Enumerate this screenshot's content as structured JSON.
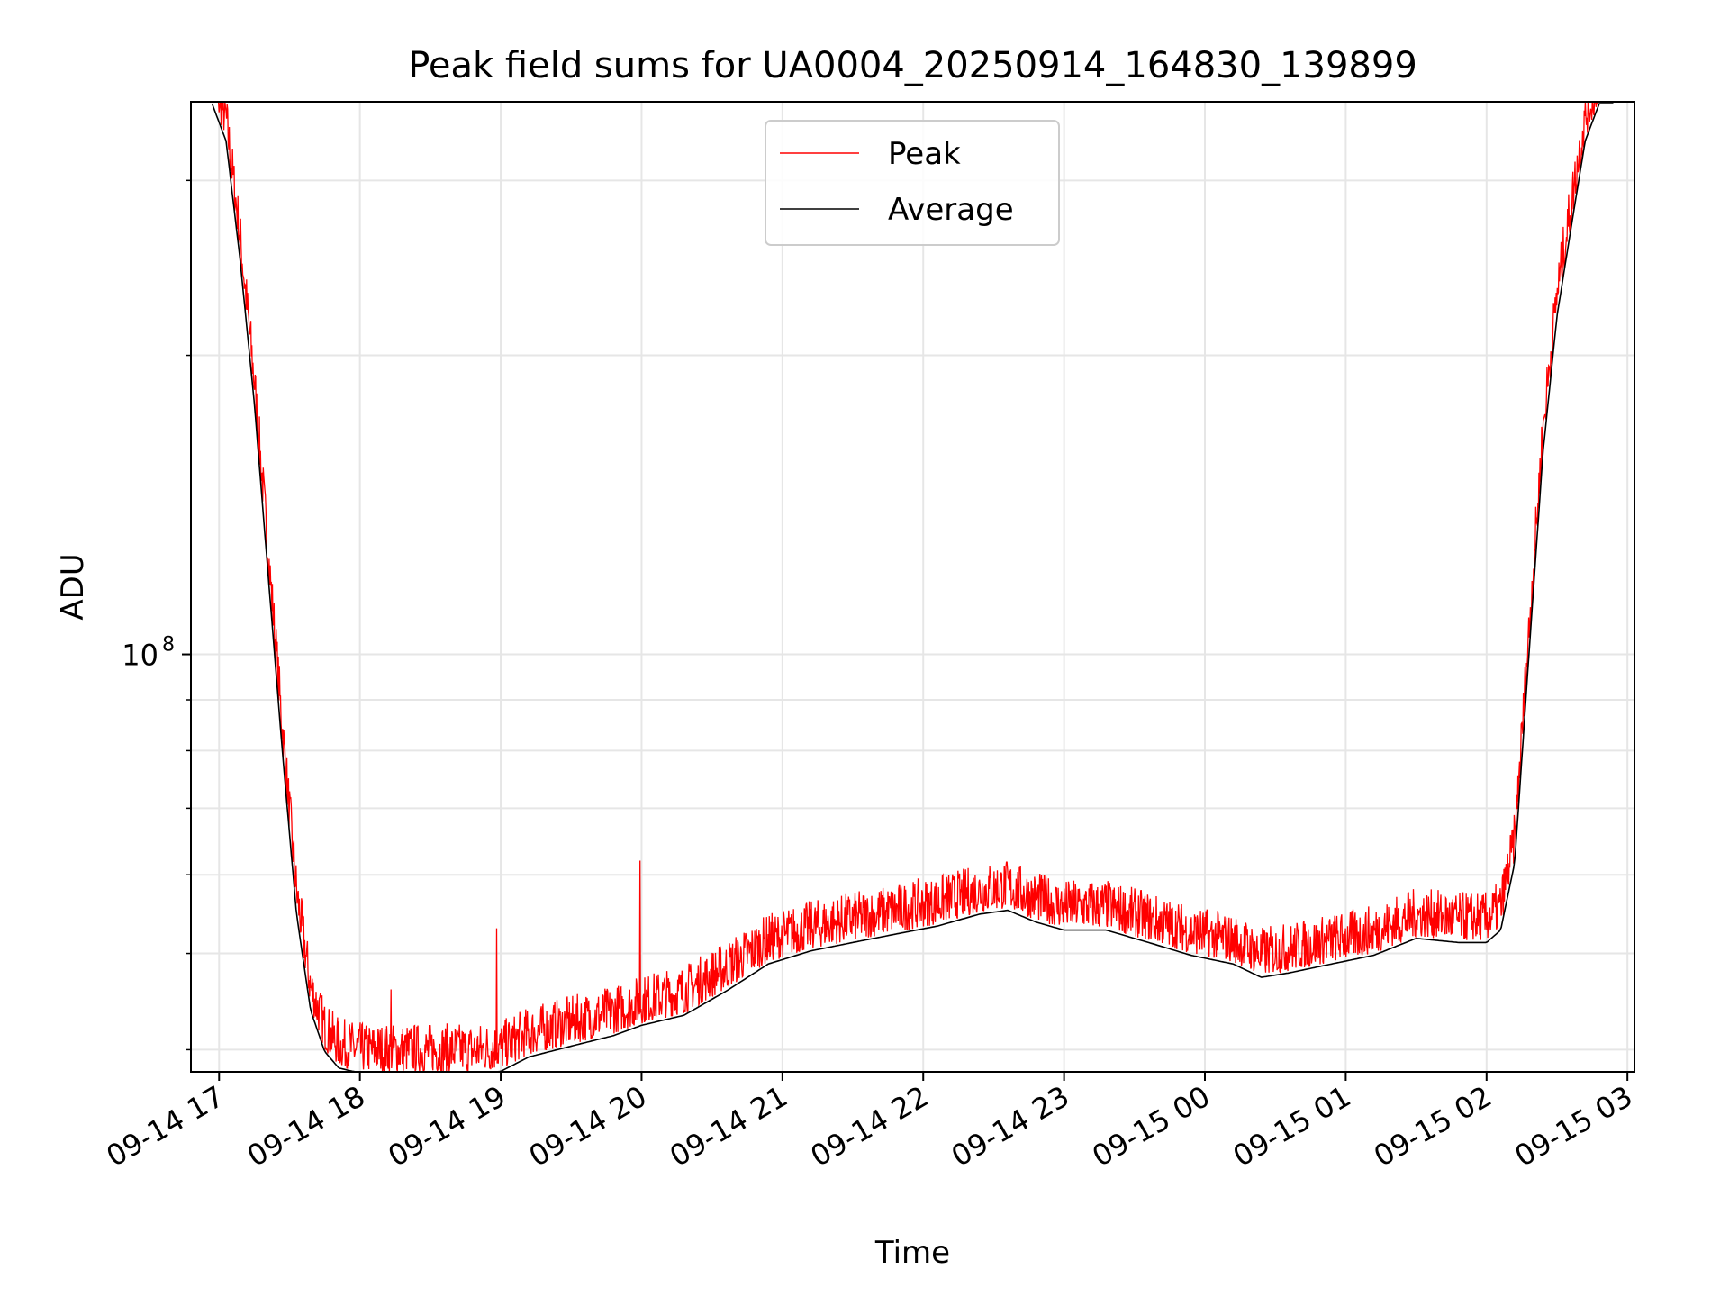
{
  "chart_data": {
    "type": "line",
    "title": "Peak field sums for UA0004_20250914_164830_139899",
    "xlabel": "Time",
    "ylabel": "ADU",
    "yscale": "log",
    "ylim": [
      38000000,
      360000000
    ],
    "xlim_hours": [
      16.8,
      27.05
    ],
    "x_unit": "hours since 2025-09-14 00:00",
    "x_ticks": [
      {
        "value": 17,
        "label": "09-14 17"
      },
      {
        "value": 18,
        "label": "09-14 18"
      },
      {
        "value": 19,
        "label": "09-14 19"
      },
      {
        "value": 20,
        "label": "09-14 20"
      },
      {
        "value": 21,
        "label": "09-14 21"
      },
      {
        "value": 22,
        "label": "09-14 22"
      },
      {
        "value": 23,
        "label": "09-14 23"
      },
      {
        "value": 24,
        "label": "09-15 00"
      },
      {
        "value": 25,
        "label": "09-15 01"
      },
      {
        "value": 26,
        "label": "09-15 02"
      },
      {
        "value": 27,
        "label": "09-15 03"
      }
    ],
    "y_major_tick": {
      "value": 100000000,
      "base": "10",
      "exponent": "8"
    },
    "y_minor_ticks": [
      40000000,
      50000000,
      60000000,
      70000000,
      80000000,
      90000000,
      200000000,
      300000000
    ],
    "grid": true,
    "legend_position": "top-center",
    "series": [
      {
        "name": "Peak",
        "color": "#ff0000",
        "noise_amplitude": 0.12,
        "spikes": [
          [
            18.22,
            46000000
          ],
          [
            18.97,
            53000000
          ],
          [
            19.99,
            62000000
          ]
        ],
        "x": [
          16.95,
          17.05,
          17.15,
          17.25,
          17.35,
          17.45,
          17.55,
          17.65,
          17.75,
          17.85,
          17.95,
          18.05,
          18.2,
          18.5,
          18.8,
          19.0,
          19.2,
          19.5,
          19.8,
          20.0,
          20.3,
          20.6,
          20.9,
          21.2,
          21.5,
          21.8,
          22.1,
          22.4,
          22.6,
          22.8,
          23.0,
          23.3,
          23.6,
          23.9,
          24.2,
          24.4,
          24.6,
          24.9,
          25.2,
          25.5,
          25.8,
          26.0,
          26.1,
          26.2,
          26.3,
          26.4,
          26.5,
          26.6,
          26.7,
          26.8,
          26.9
        ]
      },
      {
        "name": "Average",
        "color": "#000000",
        "x": [
          16.95,
          17.05,
          17.15,
          17.25,
          17.35,
          17.45,
          17.55,
          17.65,
          17.75,
          17.85,
          17.95,
          18.05,
          18.2,
          18.5,
          18.8,
          19.0,
          19.2,
          19.5,
          19.8,
          20.0,
          20.3,
          20.6,
          20.9,
          21.2,
          21.5,
          21.8,
          22.1,
          22.4,
          22.6,
          22.8,
          23.0,
          23.3,
          23.6,
          23.9,
          24.2,
          24.4,
          24.6,
          24.9,
          25.2,
          25.5,
          25.8,
          26.0,
          26.1,
          26.2,
          26.3,
          26.4,
          26.5,
          26.6,
          26.7,
          26.8,
          26.9
        ],
        "values": [
          360000000,
          330000000,
          250000000,
          180000000,
          120000000,
          80000000,
          55000000,
          44000000,
          40000000,
          38500000,
          38200000,
          38000000,
          38000000,
          38000000,
          38000000,
          38200000,
          39500000,
          40500000,
          41500000,
          42500000,
          43500000,
          46000000,
          49000000,
          50500000,
          51500000,
          52500000,
          53500000,
          55000000,
          55500000,
          54000000,
          53000000,
          53000000,
          51500000,
          50000000,
          49000000,
          47500000,
          48000000,
          49000000,
          50000000,
          52000000,
          51500000,
          51500000,
          53000000,
          62000000,
          100000000,
          160000000,
          220000000,
          270000000,
          330000000,
          360000000,
          360000000
        ]
      }
    ]
  }
}
